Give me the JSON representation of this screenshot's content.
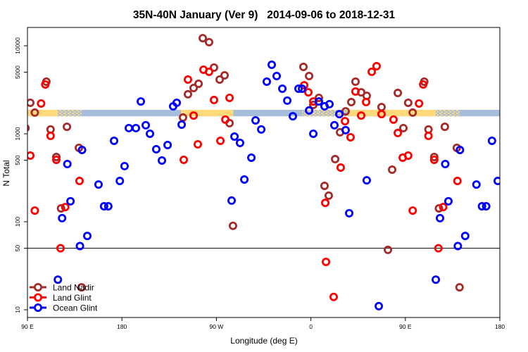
{
  "chart_data": {
    "type": "scatter",
    "title": "35N-40N January (Ver 9)   2014-09-06 to 2018-12-31",
    "xlabel": "Longitude (deg E)",
    "ylabel": "N Total",
    "x_domain_extended_deg": [
      90,
      540
    ],
    "x_ticks": [
      {
        "value": 90,
        "label": "90 E"
      },
      {
        "value": 180,
        "label": "180"
      },
      {
        "value": 270,
        "label": "90 W"
      },
      {
        "value": 360,
        "label": "0"
      },
      {
        "value": 450,
        "label": "90 E"
      },
      {
        "value": 540,
        "label": "180"
      }
    ],
    "y_scale": "log",
    "ylim": [
      8,
      15000
    ],
    "y_ticks": [
      {
        "value": 10,
        "label": "10"
      },
      {
        "value": 50,
        "label": "50"
      },
      {
        "value": 100,
        "label": "100"
      },
      {
        "value": 500,
        "label": "500"
      },
      {
        "value": 1000,
        "label": "1000"
      },
      {
        "value": 5000,
        "label": "5000"
      },
      {
        "value": 10000,
        "label": "10000"
      }
    ],
    "reference_line": 50,
    "legend_position": "bottom-left",
    "surface_band": {
      "value_range": [
        1580,
        1870
      ],
      "land_color": "#FFD97A",
      "ocean_color": "#A7BDDC",
      "segments": [
        {
          "from": 36.5,
          "to": 118.8,
          "type": "land"
        },
        {
          "from": 118.8,
          "to": 141.6,
          "type": "mixed"
        },
        {
          "from": -123.8,
          "to": -74,
          "type": "land"
        },
        {
          "from": -8.4,
          "to": 36.5,
          "type": "mixed"
        }
      ]
    },
    "series": [
      {
        "name": "Land Nadir",
        "color": "#A52A2A",
        "points": [
          [
            92.7,
            2250
          ],
          [
            97,
            1740
          ],
          [
            108,
            3910
          ],
          [
            112,
            1120
          ],
          [
            117.5,
            545
          ],
          [
            127.6,
            1200
          ],
          [
            139,
            692
          ],
          [
            122,
            142
          ],
          [
            141.6,
            18
          ],
          [
            -103,
            12200
          ],
          [
            -97,
            11000
          ],
          [
            -92.3,
            5650
          ],
          [
            -82.2,
            4610
          ],
          [
            -86.9,
            4130
          ],
          [
            -107,
            3700
          ],
          [
            -111.7,
            3310
          ],
          [
            -117.1,
            2810
          ],
          [
            -121.8,
            1530
          ],
          [
            -77.5,
            1320
          ],
          [
            -74.2,
            90
          ],
          [
            -7.1,
            5750
          ],
          [
            -1.7,
            4530
          ],
          [
            7.6,
            2560
          ],
          [
            2.3,
            2130
          ],
          [
            42.5,
            3910
          ],
          [
            47.9,
            2960
          ],
          [
            53.2,
            2700
          ],
          [
            38.5,
            2290
          ],
          [
            67.3,
            2010
          ],
          [
            33.1,
            1800
          ],
          [
            27.8,
            1040
          ],
          [
            23.1,
            515
          ],
          [
            13,
            256
          ],
          [
            17,
            198
          ],
          [
            82.8,
            2910
          ],
          [
            77.4,
            391
          ],
          [
            73.4,
            48
          ],
          [
            88.1,
            1160
          ]
        ]
      },
      {
        "name": "Land Glint",
        "color": "#FF0000",
        "points": [
          [
            92.7,
            565
          ],
          [
            103,
            2210
          ],
          [
            107,
            3630
          ],
          [
            112,
            946
          ],
          [
            117.5,
            506
          ],
          [
            139.6,
            291
          ],
          [
            97,
            134
          ],
          [
            126,
            147
          ],
          [
            121.5,
            50
          ],
          [
            -102.3,
            5350
          ],
          [
            -97,
            5060
          ],
          [
            -117.1,
            4130
          ],
          [
            -92.3,
            2420
          ],
          [
            -77.5,
            2560
          ],
          [
            -111.7,
            1610
          ],
          [
            -81.5,
            1450
          ],
          [
            -107.7,
            759
          ],
          [
            -86.2,
            832
          ],
          [
            -121.1,
            506
          ],
          [
            62.6,
            5860
          ],
          [
            58,
            5060
          ],
          [
            -6.4,
            3560
          ],
          [
            -2.4,
            2960
          ],
          [
            42.5,
            3020
          ],
          [
            52.6,
            2290
          ],
          [
            2.3,
            2330
          ],
          [
            47.9,
            1610
          ],
          [
            67.3,
            1670
          ],
          [
            32.5,
            1390
          ],
          [
            37.8,
            912
          ],
          [
            78.7,
            1450
          ],
          [
            82.8,
            1020
          ],
          [
            28.4,
            413
          ],
          [
            13.7,
            164
          ],
          [
            87.5,
            535
          ],
          [
            14.4,
            35
          ],
          [
            21.7,
            14
          ]
        ]
      },
      {
        "name": "Ocean Glint",
        "color": "#0000FF",
        "points": [
          [
            128,
            453
          ],
          [
            142,
            655
          ],
          [
            157.7,
            265
          ],
          [
            172.5,
            832
          ],
          [
            178,
            291
          ],
          [
            131,
            171
          ],
          [
            123,
            110
          ],
          [
            163,
            150
          ],
          [
            167,
            150
          ],
          [
            147,
            69
          ],
          [
            140,
            53
          ],
          [
            119,
            22
          ],
          [
            -162,
            2330
          ],
          [
            -177.5,
            429
          ],
          [
            -173.4,
            1160
          ],
          [
            -166.7,
            1160
          ],
          [
            -157.3,
            1250
          ],
          [
            -153.3,
            1000
          ],
          [
            -147.3,
            667
          ],
          [
            -141.9,
            497
          ],
          [
            -136.5,
            745
          ],
          [
            -131.2,
            2050
          ],
          [
            -127.8,
            2250
          ],
          [
            -123.1,
            1270
          ],
          [
            -72.8,
            929
          ],
          [
            -67.5,
            787
          ],
          [
            -63.4,
            302
          ],
          [
            -75.5,
            174
          ],
          [
            -37.3,
            6080
          ],
          [
            -32.6,
            4530
          ],
          [
            -42,
            3910
          ],
          [
            -27.2,
            3250
          ],
          [
            -22.5,
            2380
          ],
          [
            -11.8,
            3250
          ],
          [
            -8.4,
            3250
          ],
          [
            -17.2,
            1580
          ],
          [
            -1.7,
            1840
          ],
          [
            7.6,
            2330
          ],
          [
            13,
            2050
          ],
          [
            17.7,
            2170
          ],
          [
            27.1,
            1670
          ],
          [
            22.4,
            1250
          ],
          [
            33.1,
            1100
          ],
          [
            2.3,
            1000
          ],
          [
            -52.7,
            1420
          ],
          [
            -47.3,
            1120
          ],
          [
            -56.7,
            535
          ],
          [
            53.2,
            296
          ],
          [
            36.5,
            125
          ],
          [
            64.7,
            11
          ]
        ]
      }
    ]
  }
}
